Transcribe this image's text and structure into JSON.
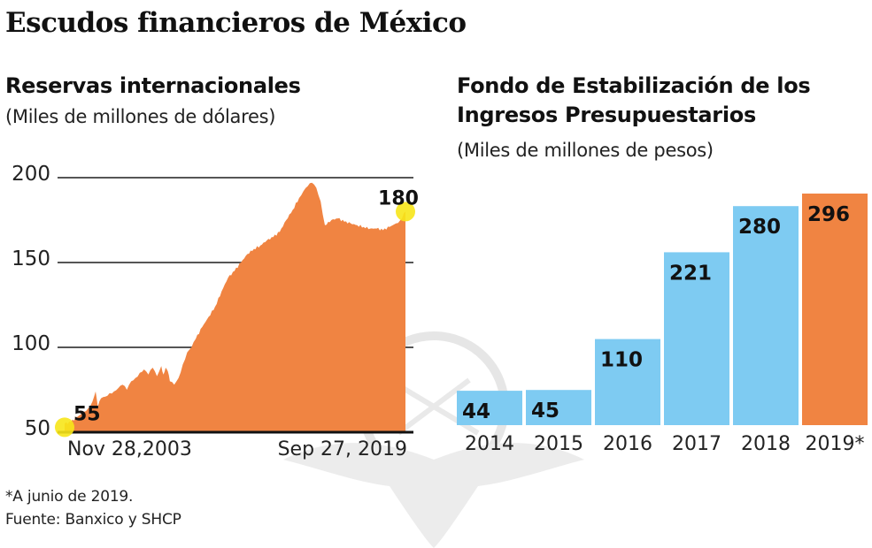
{
  "title": "Escudos financieros de México",
  "footnotes": {
    "note": "*A junio de 2019.",
    "source": "Fuente: Banxico y SHCP"
  },
  "colors": {
    "orange": "#f08442",
    "blue": "#7ecbf2",
    "highlight": "#f7e51a",
    "grid": "#555555",
    "axis": "#111111",
    "watermark": "#e8e8e8"
  },
  "chart_data": [
    {
      "type": "area",
      "title": "Reservas internacionales",
      "subtitle": "(Miles de millones de dólares)",
      "xlabel": "",
      "ylabel": "",
      "ylim": [
        50,
        200
      ],
      "yticks": [
        50,
        100,
        150,
        200
      ],
      "grid": true,
      "x_tick_labels": [
        "Nov 28,2003",
        "Sep 27, 2019"
      ],
      "start_label": "55",
      "end_label": "180",
      "start": {
        "x": 2003.91,
        "y": 55
      },
      "end": {
        "x": 2019.74,
        "y": 180
      },
      "series": [
        {
          "name": "Reservas internacionales",
          "x": [
            2003.91,
            2004.2,
            2004.5,
            2004.8,
            2005.0,
            2005.2,
            2005.35,
            2005.45,
            2005.6,
            2005.8,
            2006.0,
            2006.2,
            2006.4,
            2006.6,
            2006.8,
            2007.0,
            2007.2,
            2007.4,
            2007.6,
            2007.8,
            2008.0,
            2008.2,
            2008.4,
            2008.5,
            2008.6,
            2008.7,
            2008.8,
            2009.0,
            2009.2,
            2009.4,
            2009.6,
            2009.8,
            2010.0,
            2010.3,
            2010.6,
            2010.9,
            2011.2,
            2011.5,
            2011.8,
            2012.1,
            2012.4,
            2012.7,
            2013.0,
            2013.3,
            2013.6,
            2013.9,
            2014.2,
            2014.5,
            2014.8,
            2015.0,
            2015.2,
            2015.4,
            2015.6,
            2015.8,
            2016.0,
            2016.3,
            2016.6,
            2016.9,
            2017.2,
            2017.5,
            2017.8,
            2018.1,
            2018.4,
            2018.7,
            2019.0,
            2019.3,
            2019.5,
            2019.74
          ],
          "y": [
            55,
            56,
            59,
            62,
            64,
            68,
            74,
            65,
            70,
            71,
            73,
            74,
            76,
            78,
            75,
            80,
            82,
            85,
            87,
            84,
            88,
            83,
            89,
            84,
            88,
            86,
            80,
            78,
            82,
            90,
            97,
            100,
            105,
            112,
            118,
            124,
            133,
            141,
            145,
            150,
            155,
            158,
            160,
            163,
            165,
            168,
            175,
            181,
            188,
            192,
            195,
            197,
            194,
            186,
            172,
            175,
            176,
            174,
            173,
            172,
            171,
            170,
            170,
            169,
            171,
            173,
            175,
            180
          ]
        }
      ]
    },
    {
      "type": "bar",
      "title": "Fondo de Estabilización de los Ingresos Presupuestarios",
      "title_lines": [
        "Fondo de Estabilización de los",
        "Ingresos Presupuestarios"
      ],
      "subtitle": "(Miles de millones de pesos)",
      "xlabel": "",
      "ylabel": "",
      "ylim": [
        0,
        296
      ],
      "grid": false,
      "categories": [
        "2014",
        "2015",
        "2016",
        "2017",
        "2018",
        "2019*"
      ],
      "values": [
        44,
        45,
        110,
        221,
        280,
        296
      ],
      "highlight_index": 5
    }
  ]
}
